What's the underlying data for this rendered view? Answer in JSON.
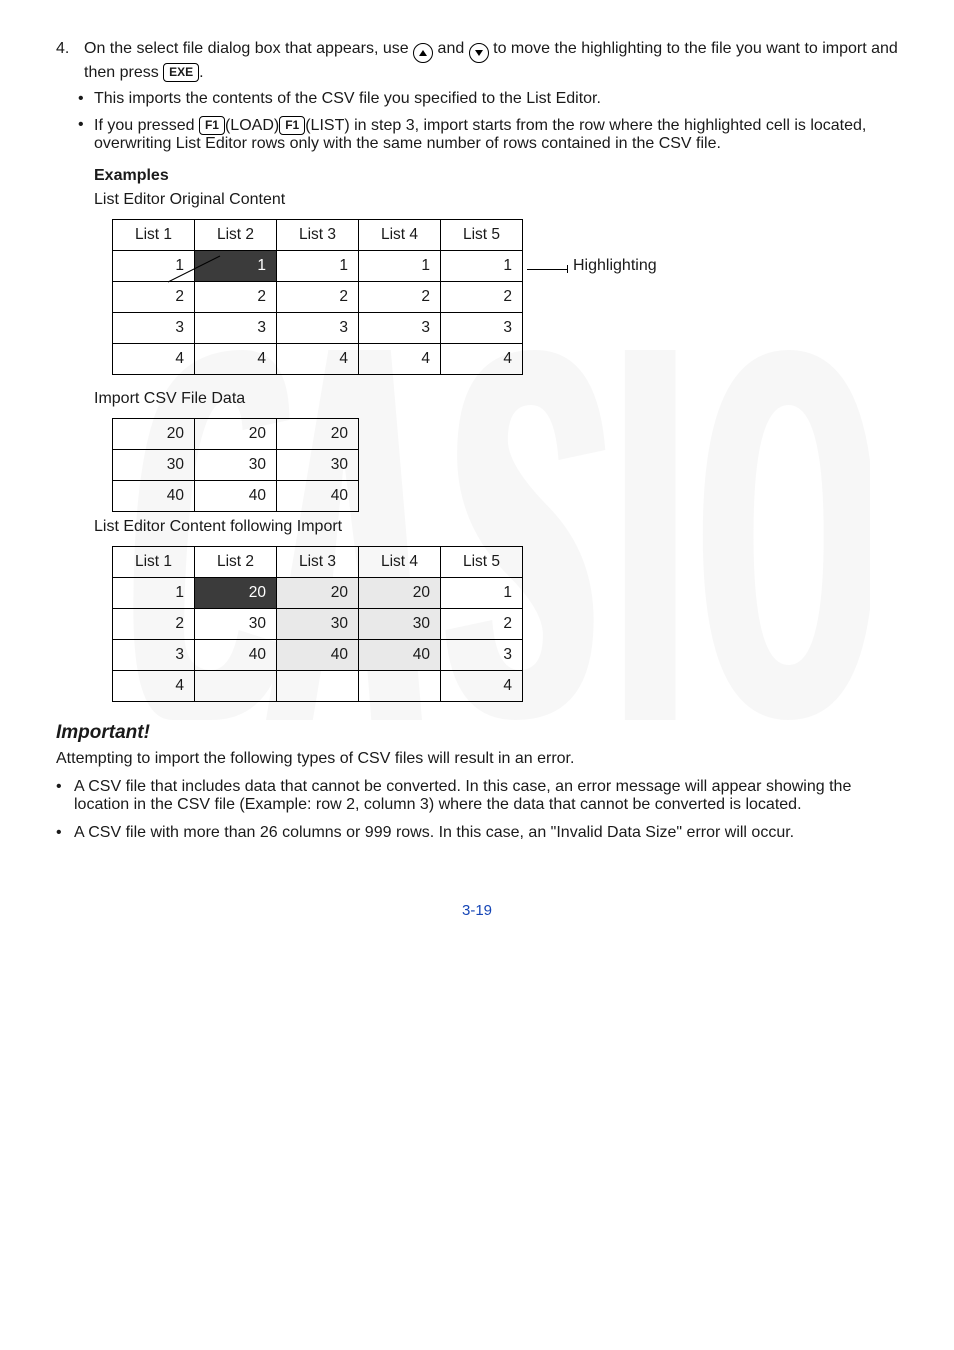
{
  "step": {
    "num": "4.",
    "text_a": "On the select file dialog box that appears, use ",
    "text_b": " and ",
    "text_c": " to move the highlighting to the file you want to import and then press ",
    "exe": "EXE",
    "period": "."
  },
  "bullet1": "This imports the contents of the CSV file you specified to the List Editor.",
  "bullet2": {
    "a": "If you pressed ",
    "f1": "F1",
    "b": "(LOAD)",
    "c": "(LIST) in step 3, import starts from the row where the highlighted cell is located, overwriting List Editor rows only with the same number of rows contained in the CSV file."
  },
  "examples": "Examples",
  "sub1": "List Editor Original Content",
  "highlight_label": "Highlighting",
  "table1": {
    "headers": [
      "List 1",
      "List 2",
      "List 3",
      "List 4",
      "List 5"
    ],
    "rows": [
      [
        "1",
        "1",
        "1",
        "1",
        "1"
      ],
      [
        "2",
        "2",
        "2",
        "2",
        "2"
      ],
      [
        "3",
        "3",
        "3",
        "3",
        "3"
      ],
      [
        "4",
        "4",
        "4",
        "4",
        "4"
      ]
    ],
    "hl": [
      0,
      1
    ]
  },
  "sub2": "Import CSV File Data",
  "table2": {
    "rows": [
      [
        "20",
        "20",
        "20"
      ],
      [
        "30",
        "30",
        "30"
      ],
      [
        "40",
        "40",
        "40"
      ]
    ]
  },
  "sub3": "List Editor Content following Import",
  "table3": {
    "headers": [
      "List 1",
      "List 2",
      "List 3",
      "List 4",
      "List 5"
    ],
    "rows": [
      [
        "1",
        "20",
        "20",
        "20",
        "1"
      ],
      [
        "2",
        "30",
        "30",
        "30",
        "2"
      ],
      [
        "3",
        "40",
        "40",
        "40",
        "3"
      ],
      [
        "4",
        "",
        "",
        "",
        "4"
      ]
    ],
    "hl": [
      0,
      1
    ],
    "shaded_cols": [
      2,
      3
    ]
  },
  "important": "Important!",
  "attempt": "Attempting to import the following types of CSV files will result in an error.",
  "errbullet1": "A CSV file that includes data that cannot be converted. In this case, an error message will appear showing the location in the CSV file (Example: row 2, column 3) where the data that cannot be converted is located.",
  "errbullet2": "A CSV file with more than 26 columns or 999 rows. In this case, an \"Invalid Data Size\" error will occur.",
  "pagenum": "3-19"
}
